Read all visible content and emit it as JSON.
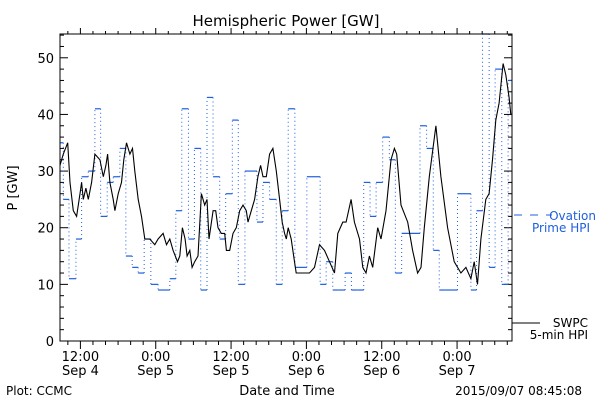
{
  "chart_data": {
    "type": "line",
    "title": "Hemispheric Power [GW]",
    "xlabel": "Date and Time",
    "ylabel": "P [GW]",
    "x_units": "hours since 2015-09-04 00:00",
    "xlim": [
      8.75,
      80.75
    ],
    "ylim": [
      0,
      54.2
    ],
    "yticks": [
      0,
      10,
      20,
      30,
      40,
      50
    ],
    "xticks": [
      {
        "x": 12,
        "line1": "12:00",
        "line2": "Sep 4"
      },
      {
        "x": 24,
        "line1": "0:00",
        "line2": "Sep 5"
      },
      {
        "x": 36,
        "line1": "12:00",
        "line2": "Sep 5"
      },
      {
        "x": 48,
        "line1": "0:00",
        "line2": "Sep 6"
      },
      {
        "x": 60,
        "line1": "12:00",
        "line2": "Sep 6"
      },
      {
        "x": 72,
        "line1": "0:00",
        "line2": "Sep 7"
      }
    ],
    "series": [
      {
        "name": "SWPC 5-min HPI",
        "legend": [
          "SWPC",
          "5-min HPI"
        ],
        "color": "#000000",
        "style": "solid",
        "x": [
          8.75,
          9.28,
          9.97,
          10.34,
          10.87,
          11.4,
          11.93,
          12.19,
          12.46,
          12.88,
          13.25,
          13.78,
          14.31,
          15.11,
          15.64,
          16.06,
          16.33,
          16.7,
          17.23,
          17.49,
          18.02,
          18.55,
          18.92,
          19.35,
          19.88,
          20.3,
          20.67,
          21.2,
          21.73,
          22.26,
          23.06,
          23.85,
          24.38,
          25.18,
          25.71,
          26.24,
          26.77,
          27.46,
          27.83,
          28.25,
          28.68,
          29.0,
          29.42,
          29.79,
          30.21,
          30.74,
          31.27,
          31.8,
          32.17,
          32.49,
          33.13,
          33.55,
          33.92,
          34.45,
          34.98,
          35.25,
          35.78,
          36.31,
          36.84,
          37.37,
          37.9,
          38.43,
          38.69,
          39.22,
          39.75,
          40.28,
          40.71,
          41.08,
          41.61,
          42.14,
          42.67,
          43.2,
          43.73,
          44.15,
          44.52,
          44.79,
          45.1,
          45.58,
          46.11,
          46.38,
          46.91,
          48.5,
          49.29,
          50.09,
          50.88,
          51.68,
          52.47,
          53.0,
          53.8,
          54.33,
          55.12,
          55.65,
          56.45,
          56.98,
          57.5,
          58.03,
          58.56,
          59.36,
          59.89,
          60.68,
          61.48,
          62.01,
          62.38,
          63.07,
          64.13,
          64.92,
          65.72,
          66.25,
          66.78,
          67.57,
          68.63,
          69.43,
          70.49,
          71.55,
          72.61,
          73.4,
          74.2,
          74.73,
          75.26,
          75.79,
          76.58,
          77.11,
          77.64,
          78.17,
          78.7,
          79.34,
          79.76,
          80.29,
          80.56
        ],
        "y": [
          31,
          33,
          35,
          28,
          23,
          22,
          26,
          28,
          25,
          27,
          25,
          28,
          33,
          32,
          29,
          31,
          33,
          28,
          25,
          23,
          26,
          28,
          32,
          35,
          33,
          34,
          30,
          25,
          22,
          18,
          18,
          17,
          18,
          19,
          17,
          18,
          16,
          14,
          15,
          20,
          18,
          15,
          16,
          13,
          14,
          15,
          26,
          24,
          25,
          18,
          23,
          23,
          20,
          19,
          19,
          16,
          16,
          19,
          20,
          23,
          24,
          23,
          21,
          23,
          25,
          29,
          31,
          29,
          29,
          33,
          34,
          30,
          25,
          21,
          19,
          18,
          20,
          18,
          14,
          12,
          12,
          12,
          13,
          17,
          16,
          14,
          12,
          19,
          21,
          21,
          25,
          21,
          18,
          13,
          12,
          15,
          13,
          20,
          18,
          23,
          32,
          34,
          33,
          24,
          21,
          16,
          12,
          13,
          20,
          29,
          38,
          29,
          20,
          14,
          12,
          13,
          11,
          14,
          10,
          18,
          25,
          26,
          32,
          39,
          42,
          49,
          47,
          43,
          40
        ]
      },
      {
        "name": "Ovation Prime HPI",
        "legend": [
          "Ovation",
          "Prime HPI"
        ],
        "color": "#1f5fe0",
        "style": "dashed-step",
        "x_start": [
          8.75,
          9.28,
          10.18,
          11.29,
          12.19,
          13.25,
          14.31,
          15.22,
          16.27,
          17.23,
          18.29,
          19.24,
          20.25,
          21.2,
          22.16,
          23.22,
          24.38,
          26.24,
          27.2,
          28.15,
          29.21,
          30.16,
          31.17,
          32.17,
          33.13,
          34.19,
          35.14,
          36.2,
          37.15,
          38.21,
          40.12,
          41.08,
          42.14,
          43.2,
          44.15,
          45.1,
          46.16,
          48.07,
          50.19,
          51.15,
          52.2,
          53.16,
          54.17,
          55.17,
          56.18,
          57.13,
          58.14,
          59.1,
          60.15,
          61.21,
          62.17,
          63.17,
          66.09,
          67.15,
          68.21,
          69.16,
          70.22,
          72.07,
          74.2,
          75.1,
          76.05,
          77.11,
          78.06,
          79.12,
          80.13
        ],
        "x_end": 80.75,
        "y": [
          35,
          25,
          11,
          18,
          29,
          30,
          41,
          22,
          28,
          29,
          34,
          15,
          13,
          12,
          18,
          10,
          9,
          11,
          23,
          41,
          18,
          34,
          9,
          43,
          29,
          18,
          26,
          39,
          10,
          30,
          21,
          28,
          25,
          10,
          23,
          41,
          13,
          29,
          10,
          14,
          9,
          9,
          12,
          9,
          9,
          28,
          22,
          28,
          36,
          32,
          12,
          19,
          38,
          34,
          16,
          9,
          9,
          26,
          9,
          23,
          55,
          13,
          48,
          10,
          46
        ]
      }
    ]
  },
  "footer": {
    "left": "Plot: CCMC",
    "right": "2015/09/07 08:45:08"
  }
}
